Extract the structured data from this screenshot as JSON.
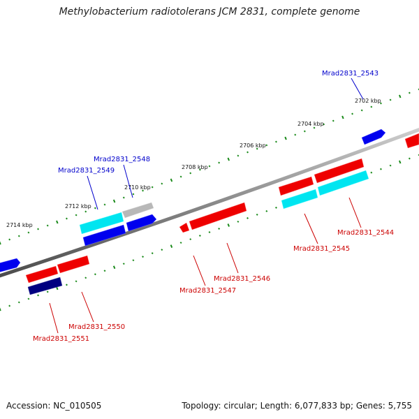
{
  "header": {
    "title": "Methylobacterium radiotolerans JCM 2831, complete genome"
  },
  "footer": {
    "accession": "Accession: NC_010505",
    "summary": "Topology: circular; Length: 6,077,833 bp; Genes: 5,755"
  },
  "colors": {
    "backbone": "#8c8c8c",
    "tick": "#1a8a1a",
    "forward_label": "#0000cc",
    "reverse_label": "#cc0000",
    "gene_blue": "#0000ee",
    "gene_red": "#ee0000",
    "gene_cyan": "#00e5f0",
    "gene_gray": "#b8b8b8",
    "gene_navy": "#000080"
  },
  "scale_labels": [
    "2702 kbp",
    "2704 kbp",
    "2706 kbp",
    "2708 kbp",
    "2710 kbp",
    "2712 kbp",
    "2714 kbp"
  ],
  "gene_labels": {
    "forward": [
      "Mrad2831_2543",
      "Mrad2831_2548",
      "Mrad2831_2549"
    ],
    "reverse": [
      "Mrad2831_2544",
      "Mrad2831_2545",
      "Mrad2831_2546",
      "Mrad2831_2547",
      "Mrad2831_2550",
      "Mrad2831_2551"
    ]
  }
}
